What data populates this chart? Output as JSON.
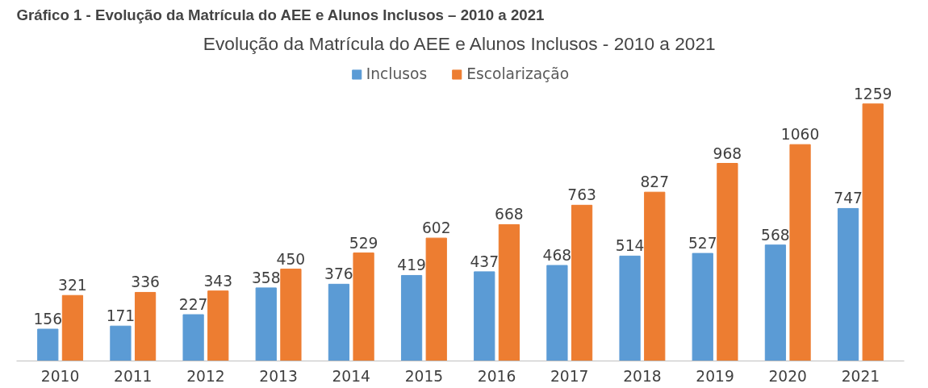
{
  "chart_data": {
    "type": "bar",
    "title": "Evolução da Matrícula do AEE e Alunos Inclusos - 2010 a 2021",
    "annotations": [
      "Gráfico 1 - Evolução da Matrícula do AEE e Alunos Inclusos – 2010 a 2021"
    ],
    "categories": [
      "2010",
      "2011",
      "2012",
      "2013",
      "2014",
      "2015",
      "2016",
      "2017",
      "2018",
      "2019",
      "2020",
      "2021"
    ],
    "series": [
      {
        "name": "Inclusos",
        "color": "#5b9bd5",
        "values": [
          156,
          171,
          227,
          358,
          376,
          419,
          437,
          468,
          514,
          527,
          568,
          747
        ]
      },
      {
        "name": "Escolarização",
        "color": "#ed7d31",
        "values": [
          321,
          336,
          343,
          450,
          529,
          602,
          668,
          763,
          827,
          968,
          1060,
          1259
        ]
      }
    ],
    "data_labels": true,
    "legend": "top",
    "grid": false
  }
}
